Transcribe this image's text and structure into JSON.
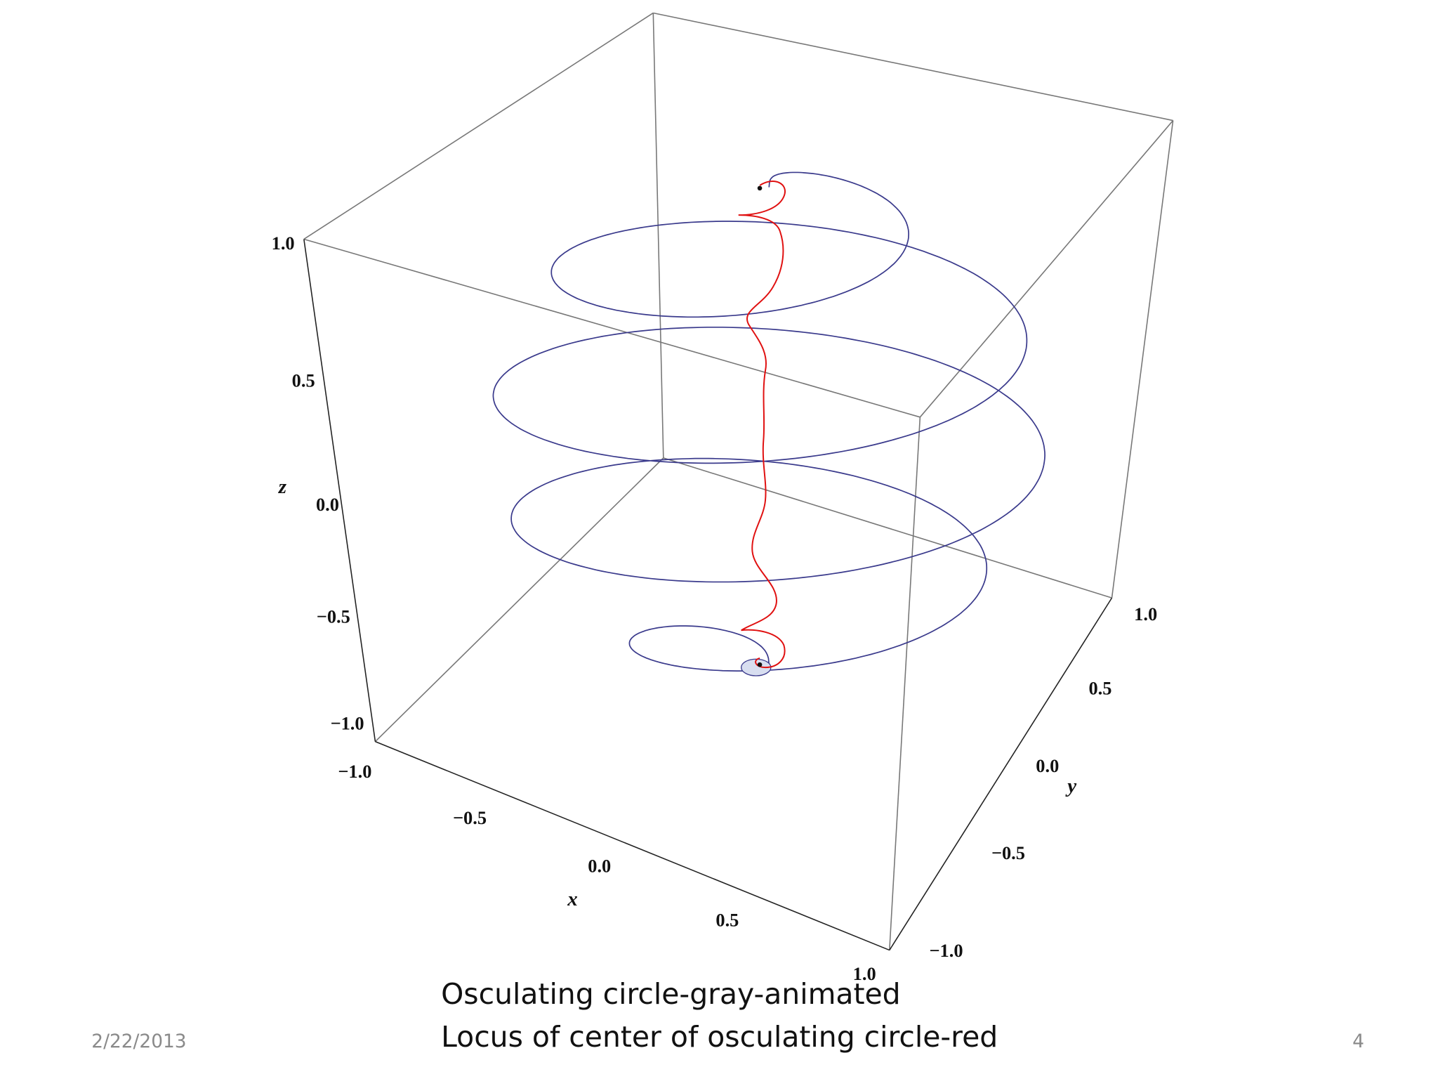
{
  "figure": {
    "axes": {
      "x": {
        "label": "x",
        "ticks": [
          "−1.0",
          "−0.5",
          "0.0",
          "0.5",
          "1.0"
        ]
      },
      "y": {
        "label": "y",
        "ticks": [
          "−1.0",
          "−0.5",
          "0.0",
          "0.5",
          "1.0"
        ]
      },
      "z": {
        "label": "z",
        "ticks": [
          "−1.0",
          "−0.5",
          "0.0",
          "0.5",
          "1.0"
        ]
      }
    }
  },
  "caption": {
    "lines": [
      "Osculating circle-gray-animated",
      "Locus of center of osculating circle-red"
    ]
  },
  "footer": {
    "date": "2/22/2013",
    "page": "4"
  }
}
